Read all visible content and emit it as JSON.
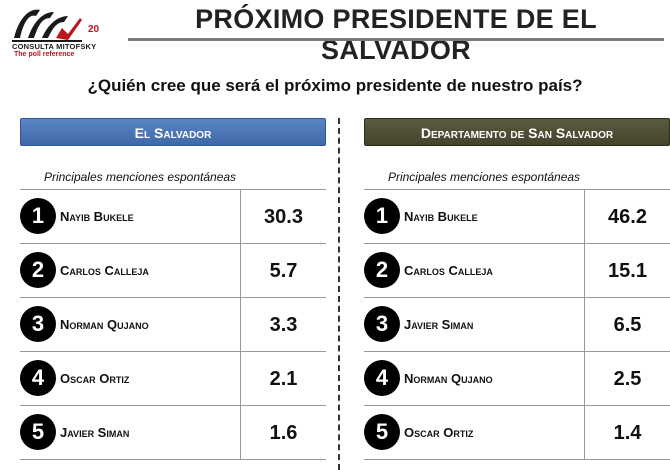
{
  "logo": {
    "brand": "CONSULTA MITOFSKY",
    "tagline": "The poll reference",
    "anniversary": "20"
  },
  "title": "PRÓXIMO PRESIDENTE DE EL SALVADOR",
  "question": "¿Quién cree que será el próximo presidente de nuestro país?",
  "panels": [
    {
      "header": "El Salvador",
      "subtitle": "Principales menciones espontáneas",
      "rows": [
        {
          "rank": "1",
          "name": "Nayib Bukele",
          "value": "30.3"
        },
        {
          "rank": "2",
          "name": "Carlos Calleja",
          "value": "5.7"
        },
        {
          "rank": "3",
          "name": "Norman Qujano",
          "value": "3.3"
        },
        {
          "rank": "4",
          "name": "Oscar Ortiz",
          "value": "2.1"
        },
        {
          "rank": "5",
          "name": "Javier Siman",
          "value": "1.6"
        }
      ]
    },
    {
      "header": "Departamento de San Salvador",
      "subtitle": "Principales menciones espontáneas",
      "rows": [
        {
          "rank": "1",
          "name": "Nayib Bukele",
          "value": "46.2"
        },
        {
          "rank": "2",
          "name": "Carlos Calleja",
          "value": "15.1"
        },
        {
          "rank": "3",
          "name": "Javier Siman",
          "value": "6.5"
        },
        {
          "rank": "4",
          "name": "Norman Qujano",
          "value": "2.5"
        },
        {
          "rank": "5",
          "name": "Oscar Ortiz",
          "value": "1.4"
        }
      ]
    }
  ]
}
